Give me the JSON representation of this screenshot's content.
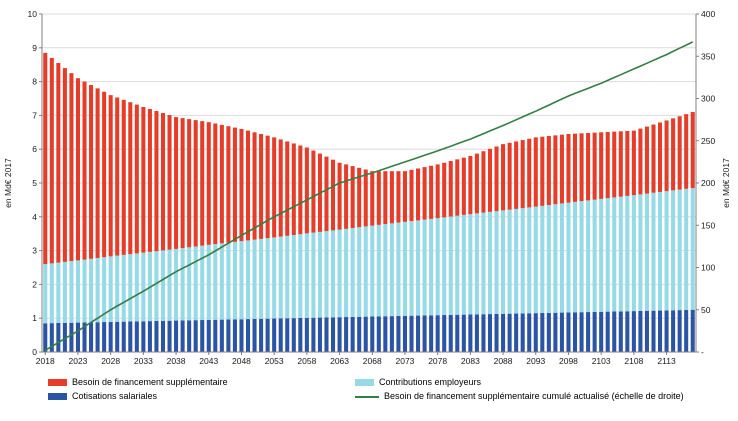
{
  "left_axis": {
    "title": "en Md€ 2017",
    "min": 0,
    "max": 10,
    "tick_step": 1,
    "ticks": [
      "0",
      "1",
      "2",
      "3",
      "4",
      "5",
      "6",
      "7",
      "8",
      "9",
      "10"
    ]
  },
  "right_axis": {
    "title": "en Md€ 2017",
    "min": 0,
    "max": 400,
    "tick_step": 50,
    "ticks": [
      "-",
      "50",
      "100",
      "150",
      "200",
      "250",
      "300",
      "350",
      "400"
    ]
  },
  "x_axis": {
    "tick_labels": [
      "2018",
      "2023",
      "2028",
      "2033",
      "2038",
      "2043",
      "2048",
      "2053",
      "2058",
      "2063",
      "2068",
      "2073",
      "2078",
      "2083",
      "2088",
      "2093",
      "2098",
      "2103",
      "2108",
      "2113"
    ]
  },
  "legend": [
    {
      "label": "Besoin de financement supplémentaire",
      "type": "bar",
      "color": "#e53d2a"
    },
    {
      "label": "Contributions employeurs",
      "type": "bar",
      "color": "#96d9e7"
    },
    {
      "label": "Cotisations salariales",
      "type": "bar",
      "color": "#2b54a5"
    },
    {
      "label": "Besoin de financement supplémentaire cumulé actualisé (échelle de droite)",
      "type": "line",
      "color": "#337e46"
    }
  ],
  "chart_data": {
    "type": "stacked-bar+line",
    "start_year": 2018,
    "end_year": 2117,
    "bar_step_years": 1,
    "grid": true,
    "legend_position": "bottom",
    "anchor_years": [
      2018,
      2023,
      2028,
      2033,
      2038,
      2043,
      2048,
      2053,
      2058,
      2063,
      2068,
      2073,
      2078,
      2083,
      2088,
      2093,
      2098,
      2103,
      2108,
      2113,
      2117
    ],
    "series": [
      {
        "name": "Cotisations salariales",
        "stack": true,
        "axis": "left",
        "color": "#2b54a5",
        "values": [
          0.85,
          0.87,
          0.89,
          0.91,
          0.93,
          0.95,
          0.97,
          0.99,
          1.01,
          1.03,
          1.05,
          1.07,
          1.09,
          1.11,
          1.13,
          1.15,
          1.17,
          1.19,
          1.21,
          1.23,
          1.25
        ]
      },
      {
        "name": "Contributions employeurs",
        "stack": true,
        "axis": "left",
        "color": "#96d9e7",
        "values": [
          1.75,
          1.84,
          1.94,
          2.03,
          2.12,
          2.22,
          2.31,
          2.4,
          2.5,
          2.59,
          2.69,
          2.78,
          2.87,
          2.97,
          3.06,
          3.15,
          3.25,
          3.34,
          3.43,
          3.53,
          3.6
        ]
      },
      {
        "name": "Besoin de financement supplémentaire",
        "stack": true,
        "axis": "left",
        "color": "#e53d2a",
        "values": [
          6.25,
          5.39,
          4.77,
          4.31,
          3.9,
          3.63,
          3.32,
          2.96,
          2.54,
          1.98,
          1.61,
          1.5,
          1.59,
          1.72,
          1.96,
          2.05,
          2.03,
          1.97,
          1.91,
          2.09,
          2.25
        ]
      },
      {
        "name": "Besoin de financement supplémentaire cumulé actualisé (échelle de droite)",
        "stack": false,
        "axis": "right",
        "color": "#337e46",
        "line": true,
        "values": [
          2,
          25,
          50,
          72,
          95,
          115,
          138,
          160,
          180,
          200,
          212,
          225,
          238,
          252,
          268,
          285,
          303,
          318,
          335,
          352,
          367
        ]
      }
    ]
  },
  "colors": {
    "grid": "#dcdcdc",
    "axis": "#808080",
    "text": "#1a1a1a"
  }
}
